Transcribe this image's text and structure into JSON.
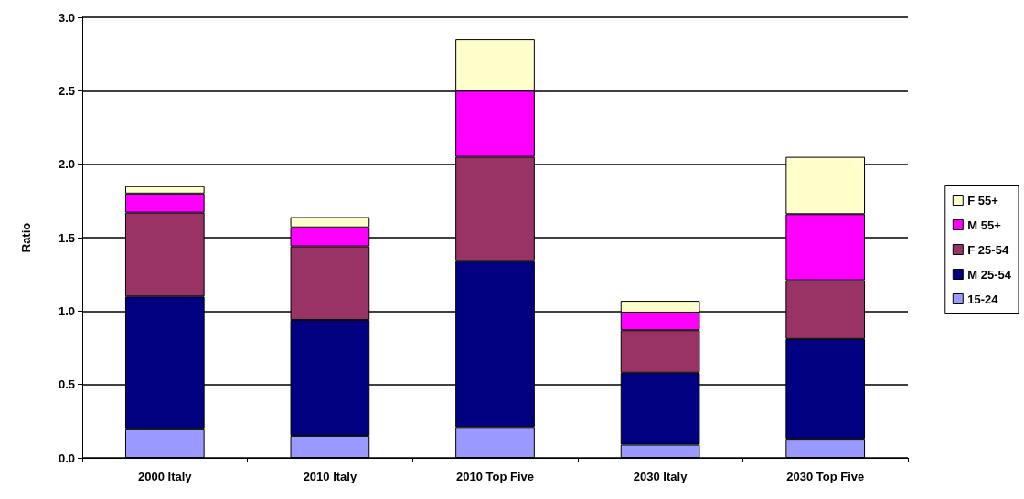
{
  "chart_data": {
    "type": "bar",
    "stacked": true,
    "ylabel": "Ratio",
    "categories": [
      "2000 Italy",
      "2010 Italy",
      "2010 Top Five",
      "2030 Italy",
      "2030 Top Five"
    ],
    "series": [
      {
        "name": "15-24",
        "color": "#9999ff",
        "values": [
          0.2,
          0.15,
          0.21,
          0.09,
          0.13
        ]
      },
      {
        "name": "M 25-54",
        "color": "#000080",
        "values": [
          0.9,
          0.79,
          1.13,
          0.49,
          0.68
        ]
      },
      {
        "name": "F 25-54",
        "color": "#993366",
        "values": [
          0.57,
          0.5,
          0.71,
          0.29,
          0.4
        ]
      },
      {
        "name": "M 55+",
        "color": "#ff00ff",
        "values": [
          0.13,
          0.13,
          0.45,
          0.12,
          0.45
        ]
      },
      {
        "name": "F 55+",
        "color": "#ffffcc",
        "values": [
          0.05,
          0.07,
          0.35,
          0.08,
          0.39
        ]
      }
    ],
    "ylim": [
      0,
      3
    ],
    "yticks": [
      {
        "value": 0,
        "label": "0.0"
      },
      {
        "value": 0.5,
        "label": "0.5"
      },
      {
        "value": 1,
        "label": "1.0"
      },
      {
        "value": 1.5,
        "label": "1.5"
      },
      {
        "value": 2,
        "label": "2.0"
      },
      {
        "value": 2.5,
        "label": "2.5"
      },
      {
        "value": 3,
        "label": "3.0"
      }
    ],
    "grid": "y",
    "legend": "right"
  }
}
